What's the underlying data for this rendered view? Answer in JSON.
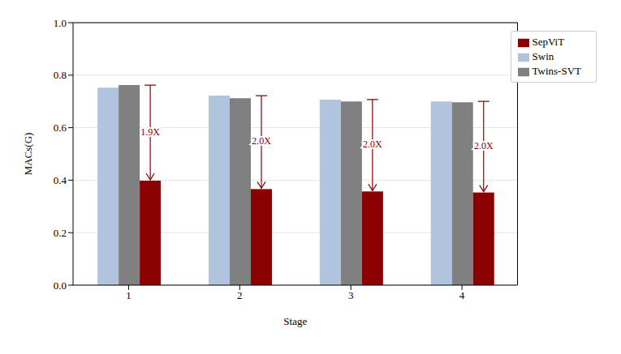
{
  "chart_data": {
    "type": "bar",
    "categories": [
      "1",
      "2",
      "3",
      "4"
    ],
    "series": [
      {
        "name": "Swin",
        "color": "#b0c4de",
        "values": [
          0.752,
          0.722,
          0.707,
          0.7
        ]
      },
      {
        "name": "Twins-SVT",
        "color": "#808080",
        "values": [
          0.762,
          0.712,
          0.7,
          0.697
        ]
      },
      {
        "name": "SepViT",
        "color": "#8b0000",
        "values": [
          0.398,
          0.366,
          0.357,
          0.353
        ]
      }
    ],
    "annotations": [
      "1.9X",
      "2.0X",
      "2.0X",
      "2.0X"
    ],
    "x_label": "Stage",
    "y_label": "MACs(G)",
    "ylim": [
      0,
      1
    ],
    "yticks": [
      {
        "value": 0,
        "label": "0.0"
      },
      0.2,
      0.4,
      0.6,
      0.8,
      {
        "value": 1,
        "label": "1.0"
      }
    ],
    "grid": true,
    "legend": "upper right"
  }
}
